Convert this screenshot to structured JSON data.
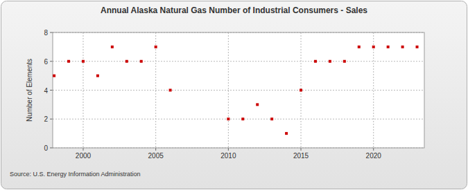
{
  "chart_data": {
    "type": "scatter",
    "title": "Annual Alaska Natural Gas Number of Industrial Consumers - Sales",
    "y_label": "Number of Elements",
    "source": "Source: U.S. Energy Information Administration",
    "x": [
      1998,
      1999,
      2000,
      2001,
      2002,
      2003,
      2004,
      2005,
      2006,
      2010,
      2011,
      2012,
      2013,
      2014,
      2015,
      2016,
      2017,
      2018,
      2019,
      2020,
      2021,
      2022,
      2023
    ],
    "values": [
      5,
      6,
      6,
      5,
      7,
      6,
      6,
      7,
      4,
      2,
      2,
      3,
      2,
      1,
      4,
      6,
      6,
      6,
      7,
      7,
      7,
      7,
      7
    ],
    "color": "#cc0000",
    "marker": "square",
    "xlim": [
      1997.9,
      2023.5
    ],
    "xticks": [
      2000,
      2005,
      2010,
      2015,
      2020
    ],
    "ylim": [
      0,
      8
    ],
    "yticks": [
      0,
      2,
      4,
      6,
      8
    ],
    "grid": true
  }
}
